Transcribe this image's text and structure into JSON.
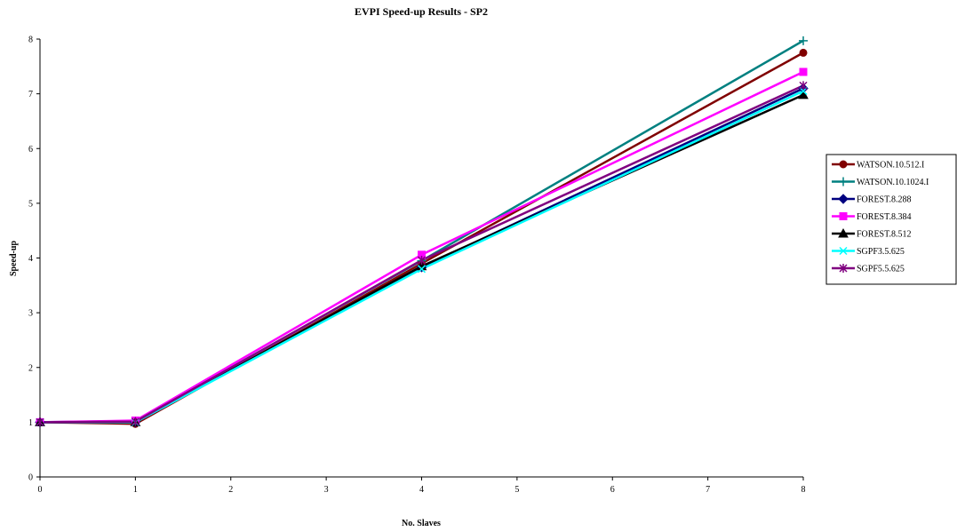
{
  "chart_data": {
    "type": "line",
    "title": "EVPI Speed-up Results - SP2",
    "xlabel": "No. Slaves",
    "ylabel": "Speed-up",
    "xlim": [
      0,
      8
    ],
    "ylim": [
      0,
      8
    ],
    "xticks": [
      0,
      1,
      2,
      3,
      4,
      5,
      6,
      7,
      8
    ],
    "yticks": [
      0,
      1,
      2,
      3,
      4,
      5,
      6,
      7,
      8
    ],
    "grid": false,
    "legend_position": "right",
    "x": [
      0,
      1,
      4,
      8
    ],
    "series": [
      {
        "name": "WATSON.10.512.I",
        "values": [
          1.0,
          0.97,
          3.9,
          7.75
        ],
        "color": "#800000",
        "marker": "circle"
      },
      {
        "name": "WATSON.10.1024.I",
        "values": [
          1.0,
          1.02,
          3.95,
          7.97
        ],
        "color": "#008080",
        "marker": "plus"
      },
      {
        "name": "FOREST.8.288",
        "values": [
          1.0,
          1.0,
          3.83,
          7.1
        ],
        "color": "#000080",
        "marker": "diamond"
      },
      {
        "name": "FOREST.8.384",
        "values": [
          1.0,
          1.03,
          4.06,
          7.4
        ],
        "color": "#ff00ff",
        "marker": "square"
      },
      {
        "name": "FOREST.8.512",
        "values": [
          1.0,
          1.0,
          3.85,
          6.98
        ],
        "color": "#000000",
        "marker": "triangle"
      },
      {
        "name": "SGPF3.5.625",
        "values": [
          1.0,
          1.0,
          3.8,
          7.05
        ],
        "color": "#00ffff",
        "marker": "x"
      },
      {
        "name": "SGPF5.5.625",
        "values": [
          1.0,
          1.01,
          3.96,
          7.15
        ],
        "color": "#800080",
        "marker": "star"
      }
    ]
  }
}
